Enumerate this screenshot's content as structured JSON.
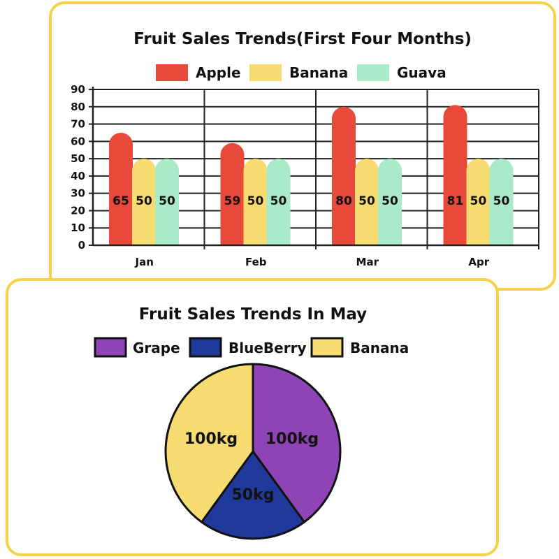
{
  "chart_data": [
    {
      "type": "bar",
      "title": "Fruit Sales Trends(First Four Months)",
      "categories": [
        "Jan",
        "Feb",
        "Mar",
        "Apr"
      ],
      "series": [
        {
          "name": "Apple",
          "color": "#e8493b",
          "values": [
            65,
            59,
            80,
            81
          ]
        },
        {
          "name": "Banana",
          "color": "#f7dc72",
          "values": [
            50,
            50,
            50,
            50
          ]
        },
        {
          "name": "Guava",
          "color": "#a9ebc8",
          "values": [
            50,
            50,
            50,
            50
          ]
        }
      ],
      "y_ticks": [
        "0",
        "10",
        "20",
        "30",
        "40",
        "50",
        "60",
        "70",
        "80",
        "90"
      ],
      "ylim": [
        0,
        90
      ],
      "grid": true,
      "legend": "top"
    },
    {
      "type": "pie",
      "title": "Fruit Sales Trends In May",
      "slices": [
        {
          "name": "Grape",
          "value": 100,
          "label": "100kg",
          "color": "#8e44b4"
        },
        {
          "name": "BlueBerry",
          "value": 50,
          "label": "50kg",
          "color": "#1f3a9a"
        },
        {
          "name": "Banana",
          "value": 100,
          "label": "100kg",
          "color": "#f7dc72"
        }
      ],
      "legend": "top"
    }
  ]
}
